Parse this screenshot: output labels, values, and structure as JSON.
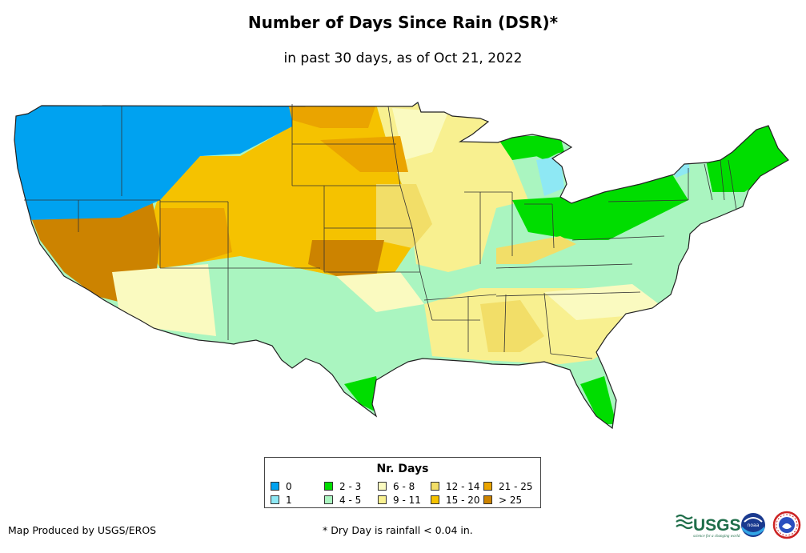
{
  "title": "Number of Days Since Rain (DSR)*",
  "subtitle": "in past 30 days, as of Oct 21, 2022",
  "legend": {
    "title": "Nr. Days",
    "items": [
      {
        "label": "0",
        "color": "#00a2f0"
      },
      {
        "label": "1",
        "color": "#8ee8f4"
      },
      {
        "label": "2 - 3",
        "color": "#00dd00"
      },
      {
        "label": "4 - 5",
        "color": "#aaf5c0"
      },
      {
        "label": "6 - 8",
        "color": "#fafac0"
      },
      {
        "label": "9 - 11",
        "color": "#f8f090"
      },
      {
        "label": "12 - 14",
        "color": "#f2de68"
      },
      {
        "label": "15 - 20",
        "color": "#f5c200"
      },
      {
        "label": "21 - 25",
        "color": "#eaa400"
      },
      {
        "label": "> 25",
        "color": "#cc8300"
      }
    ]
  },
  "credit": "Map Produced by USGS/EROS",
  "footnote": "* Dry Day is rainfall < 0.04 in.",
  "logos": {
    "usgs_text": "USGS",
    "usgs_tagline": "science for a changing world",
    "noaa_text": "noaa"
  }
}
